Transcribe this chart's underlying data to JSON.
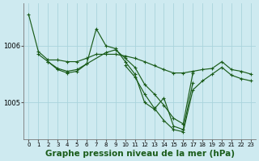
{
  "background_color": "#ceeaf0",
  "grid_color": "#aad4dc",
  "line_color": "#1a5c1a",
  "xlabel": "Graphe pression niveau de la mer (hPa)",
  "xlabel_fontsize": 7.5,
  "ytick_labels": [
    "1005",
    "1006"
  ],
  "yticks": [
    1005.0,
    1006.0
  ],
  "ylim": [
    1004.35,
    1006.75
  ],
  "xlim": [
    -0.5,
    23.5
  ],
  "xticks": [
    0,
    1,
    2,
    3,
    4,
    5,
    6,
    7,
    8,
    9,
    10,
    11,
    12,
    13,
    14,
    15,
    16,
    17,
    18,
    19,
    20,
    21,
    22,
    23
  ],
  "series": [
    {
      "x": [
        0,
        1,
        2,
        3,
        4,
        5,
        6,
        7,
        8,
        9,
        10,
        11,
        12,
        13,
        14,
        15,
        16,
        17,
        18,
        19,
        20,
        21,
        22,
        23
      ],
      "y": [
        1006.55,
        1005.9,
        1005.75,
        1005.75,
        1005.72,
        1005.72,
        1005.78,
        1005.85,
        1005.85,
        1005.85,
        1005.82,
        1005.78,
        1005.72,
        1005.65,
        1005.58,
        1005.52,
        1005.52,
        1005.55,
        1005.58,
        1005.6,
        1005.72,
        1005.58,
        1005.55,
        1005.5
      ]
    },
    {
      "x": [
        1,
        2,
        3,
        4,
        5,
        6,
        8,
        9,
        10,
        11,
        12,
        13,
        14,
        15,
        16,
        17
      ],
      "y": [
        1005.85,
        1005.72,
        1005.6,
        1005.55,
        1005.58,
        1005.68,
        1005.88,
        1005.93,
        1005.78,
        1005.62,
        1005.32,
        1005.15,
        1004.95,
        1004.72,
        1004.62,
        1005.52
      ]
    },
    {
      "x": [
        2,
        3,
        4,
        5,
        6,
        7,
        8,
        9,
        10,
        11,
        12,
        13,
        14,
        15,
        16,
        17
      ],
      "y": [
        1005.72,
        1005.58,
        1005.52,
        1005.55,
        1005.68,
        1006.3,
        1006.0,
        1005.95,
        1005.72,
        1005.5,
        1005.0,
        1004.88,
        1005.08,
        1004.58,
        1004.52,
        1005.35
      ]
    },
    {
      "x": [
        10,
        11,
        12,
        13,
        14,
        15,
        16,
        17,
        18,
        19,
        20,
        21,
        22,
        23
      ],
      "y": [
        1005.65,
        1005.45,
        1005.15,
        1004.9,
        1004.68,
        1004.52,
        1004.48,
        1005.22,
        1005.38,
        1005.5,
        1005.62,
        1005.48,
        1005.42,
        1005.38
      ]
    }
  ]
}
